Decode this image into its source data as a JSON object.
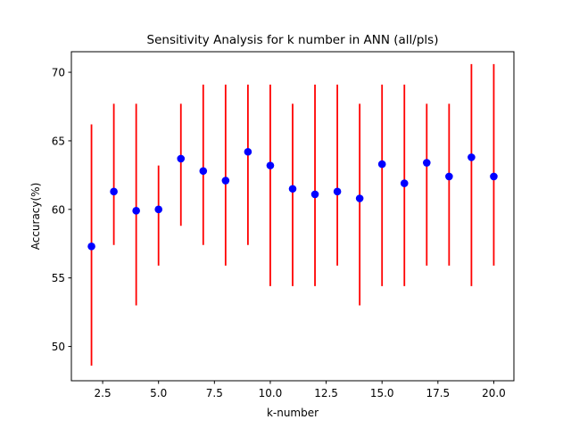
{
  "chart_data": {
    "type": "scatter",
    "title": "Sensitivity Analysis for k number in ANN (all/pls)",
    "xlabel": "k-number",
    "ylabel": "Accuracy(%)",
    "xlim": [
      1.1,
      20.9
    ],
    "ylim": [
      47.5,
      71.5
    ],
    "xticks": [
      2.5,
      5.0,
      7.5,
      10.0,
      12.5,
      15.0,
      17.5,
      20.0
    ],
    "xtick_labels": [
      "2.5",
      "5.0",
      "7.5",
      "10.0",
      "12.5",
      "15.0",
      "17.5",
      "20.0"
    ],
    "yticks": [
      50,
      55,
      60,
      65,
      70
    ],
    "ytick_labels": [
      "50",
      "55",
      "60",
      "65",
      "70"
    ],
    "grid": false,
    "marker_color": "#0000ff",
    "errorbar_color": "#ff0000",
    "x": [
      2,
      3,
      4,
      5,
      6,
      7,
      8,
      9,
      10,
      11,
      12,
      13,
      14,
      15,
      16,
      17,
      18,
      19,
      20
    ],
    "y": [
      57.3,
      61.3,
      59.9,
      60.0,
      63.7,
      62.8,
      62.1,
      64.2,
      63.2,
      61.5,
      61.1,
      61.3,
      60.8,
      63.3,
      61.9,
      63.4,
      62.4,
      63.8,
      62.4
    ],
    "y_low": [
      48.6,
      57.4,
      53.0,
      55.9,
      58.8,
      57.4,
      55.9,
      57.4,
      54.4,
      54.4,
      54.4,
      55.9,
      53.0,
      54.4,
      54.4,
      55.9,
      55.9,
      54.4,
      55.9
    ],
    "y_high": [
      66.2,
      67.7,
      67.7,
      63.2,
      67.7,
      69.1,
      69.1,
      69.1,
      69.1,
      67.7,
      69.1,
      69.1,
      67.7,
      69.1,
      69.1,
      67.7,
      67.7,
      70.6,
      70.6
    ]
  }
}
